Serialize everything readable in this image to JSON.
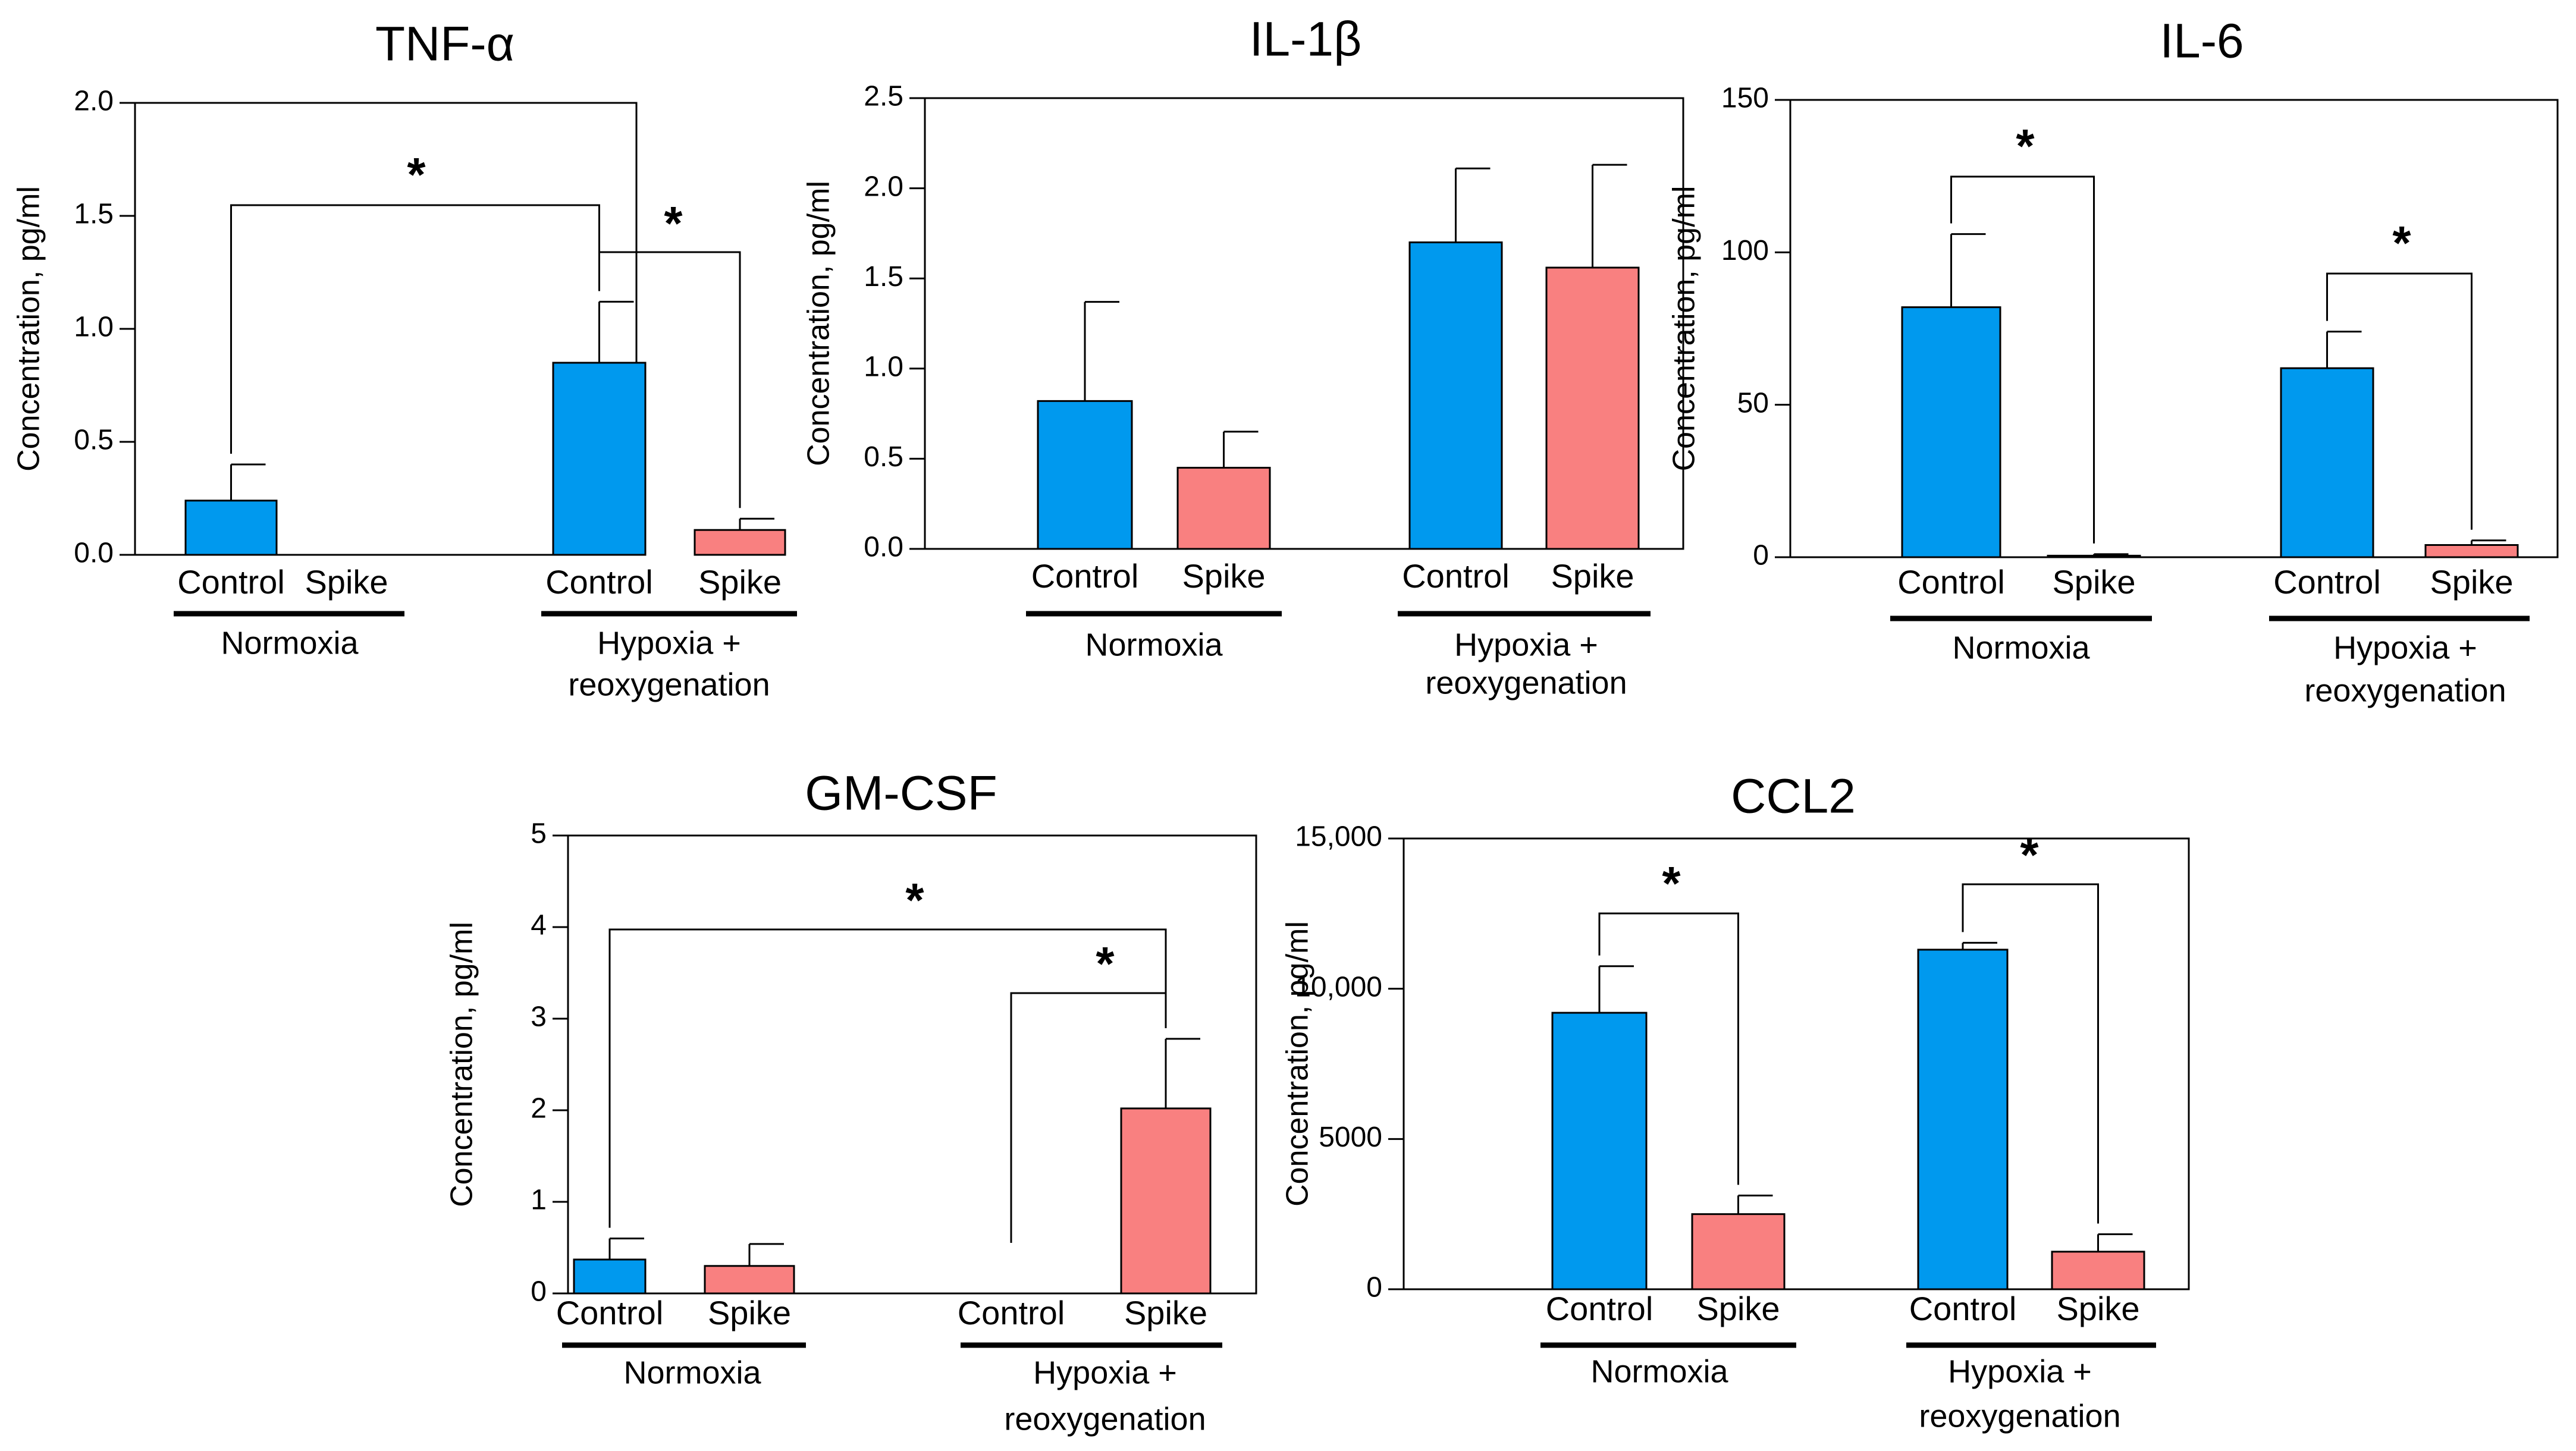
{
  "colors": {
    "control": "#0099ee",
    "spike": "#f98080",
    "axis": "#000000",
    "bracket": "#000000"
  },
  "labels": {
    "ylabel": "Concentration, pg/ml",
    "control": "Control",
    "spike": "Spike",
    "normoxia": "Normoxia",
    "hypoxia_line1": "Hypoxia +",
    "hypoxia_line2": "reoxygenation",
    "significance": "*"
  },
  "chart_data": [
    {
      "type": "bar",
      "title": "TNF-α",
      "ylabel": "Concentration, pg/ml",
      "ylim": [
        0,
        2.0
      ],
      "yticks": [
        "0.0",
        "0.5",
        "1.0",
        "1.5",
        "2.0"
      ],
      "groups": [
        "Normoxia",
        "Hypoxia + reoxygenation"
      ],
      "categories": [
        "Control",
        "Spike"
      ],
      "series": [
        {
          "name": "Normoxia",
          "values": [
            0.24,
            0
          ],
          "errors": [
            0.16,
            0
          ]
        },
        {
          "name": "Hypoxia + reoxygenation",
          "values": [
            0.85,
            0.11
          ],
          "errors": [
            0.27,
            0.05
          ]
        }
      ],
      "significance": [
        {
          "from": "Normoxia Control",
          "to": "Hypoxia + reoxygenation Control",
          "label": "*"
        },
        {
          "from": "Hypoxia + reoxygenation Control",
          "to": "Hypoxia + reoxygenation Spike",
          "label": "*"
        }
      ]
    },
    {
      "type": "bar",
      "title": "IL-1β",
      "ylabel": "Concentration, pg/ml",
      "ylim": [
        0,
        2.5
      ],
      "yticks": [
        "0.0",
        "0.5",
        "1.0",
        "1.5",
        "2.0",
        "2.5"
      ],
      "groups": [
        "Normoxia",
        "Hypoxia + reoxygenation"
      ],
      "categories": [
        "Control",
        "Spike"
      ],
      "series": [
        {
          "name": "Normoxia",
          "values": [
            0.82,
            0.45
          ],
          "errors": [
            0.55,
            0.2
          ]
        },
        {
          "name": "Hypoxia + reoxygenation",
          "values": [
            1.7,
            1.56
          ],
          "errors": [
            0.41,
            0.57
          ]
        }
      ],
      "significance": []
    },
    {
      "type": "bar",
      "title": "IL-6",
      "ylabel": "Concentration, pg/ml",
      "ylim": [
        0,
        150
      ],
      "yticks": [
        "0",
        "50",
        "100",
        "150"
      ],
      "groups": [
        "Normoxia",
        "Hypoxia + reoxygenation"
      ],
      "categories": [
        "Control",
        "Spike"
      ],
      "series": [
        {
          "name": "Normoxia",
          "values": [
            82,
            0.5
          ],
          "errors": [
            24,
            0.5
          ]
        },
        {
          "name": "Hypoxia + reoxygenation",
          "values": [
            62,
            4
          ],
          "errors": [
            12,
            1.5
          ]
        }
      ],
      "significance": [
        {
          "from": "Normoxia Control",
          "to": "Normoxia Spike",
          "label": "*"
        },
        {
          "from": "Hypoxia + reoxygenation Control",
          "to": "Hypoxia + reoxygenation Spike",
          "label": "*"
        }
      ]
    },
    {
      "type": "bar",
      "title": "GM-CSF",
      "ylabel": "Concentration, pg/ml",
      "ylim": [
        0,
        5
      ],
      "yticks": [
        "0",
        "1",
        "2",
        "3",
        "4",
        "5"
      ],
      "groups": [
        "Normoxia",
        "Hypoxia + reoxygenation"
      ],
      "categories": [
        "Control",
        "Spike"
      ],
      "series": [
        {
          "name": "Normoxia",
          "values": [
            0.37,
            0.3
          ],
          "errors": [
            0.23,
            0.24
          ]
        },
        {
          "name": "Hypoxia + reoxygenation",
          "values": [
            0,
            2.02
          ],
          "errors": [
            0,
            0.76
          ]
        }
      ],
      "significance": [
        {
          "from": "Normoxia Control",
          "to": "Hypoxia + reoxygenation Spike",
          "label": "*"
        },
        {
          "from": "Hypoxia + reoxygenation Control",
          "to": "Hypoxia + reoxygenation Spike",
          "label": "*"
        }
      ]
    },
    {
      "type": "bar",
      "title": "CCL2",
      "ylabel": "Concentration, pg/ml",
      "ylim": [
        0,
        15000
      ],
      "yticks": [
        "0",
        "5000",
        "10,000",
        "15,000"
      ],
      "groups": [
        "Normoxia",
        "Hypoxia + reoxygenation"
      ],
      "categories": [
        "Control",
        "Spike"
      ],
      "series": [
        {
          "name": "Normoxia",
          "values": [
            9200,
            2500
          ],
          "errors": [
            1550,
            620
          ]
        },
        {
          "name": "Hypoxia + reoxygenation",
          "values": [
            11300,
            1250
          ],
          "errors": [
            230,
            580
          ]
        }
      ],
      "significance": [
        {
          "from": "Normoxia Control",
          "to": "Normoxia Spike",
          "label": "*"
        },
        {
          "from": "Hypoxia + reoxygenation Control",
          "to": "Hypoxia + reoxygenation Spike",
          "label": "*"
        }
      ]
    }
  ]
}
